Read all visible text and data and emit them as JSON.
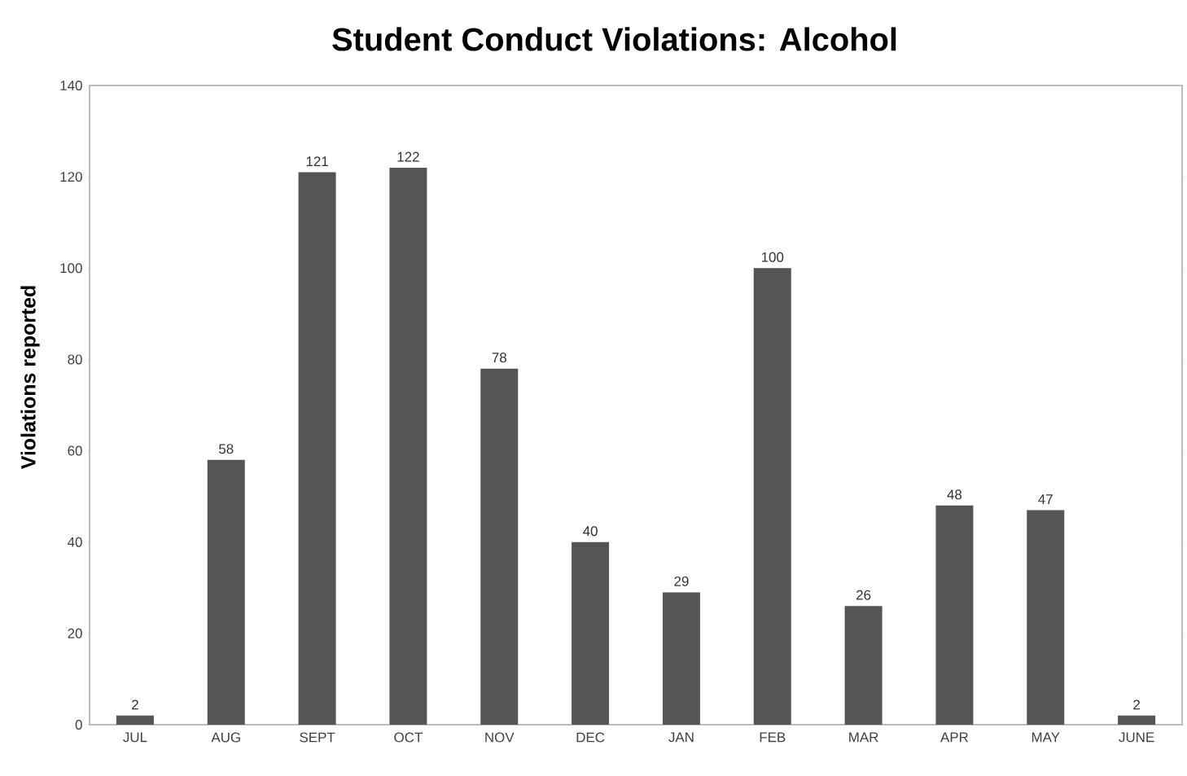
{
  "chart_data": {
    "type": "bar",
    "title": "Student Conduct Violations: Alcohol",
    "ylabel": "Violations reported",
    "categories": [
      "JUL",
      "AUG",
      "SEPT",
      "OCT",
      "NOV",
      "DEC",
      "JAN",
      "FEB",
      "MAR",
      "APR",
      "MAY",
      "JUNE"
    ],
    "values": [
      2,
      58,
      121,
      122,
      78,
      40,
      29,
      100,
      26,
      48,
      47,
      2
    ],
    "color": "#555555",
    "ylim": [
      0,
      140
    ],
    "yticks": [
      0,
      20,
      40,
      60,
      80,
      100,
      120,
      140
    ],
    "data_labels": true,
    "grid": false
  }
}
